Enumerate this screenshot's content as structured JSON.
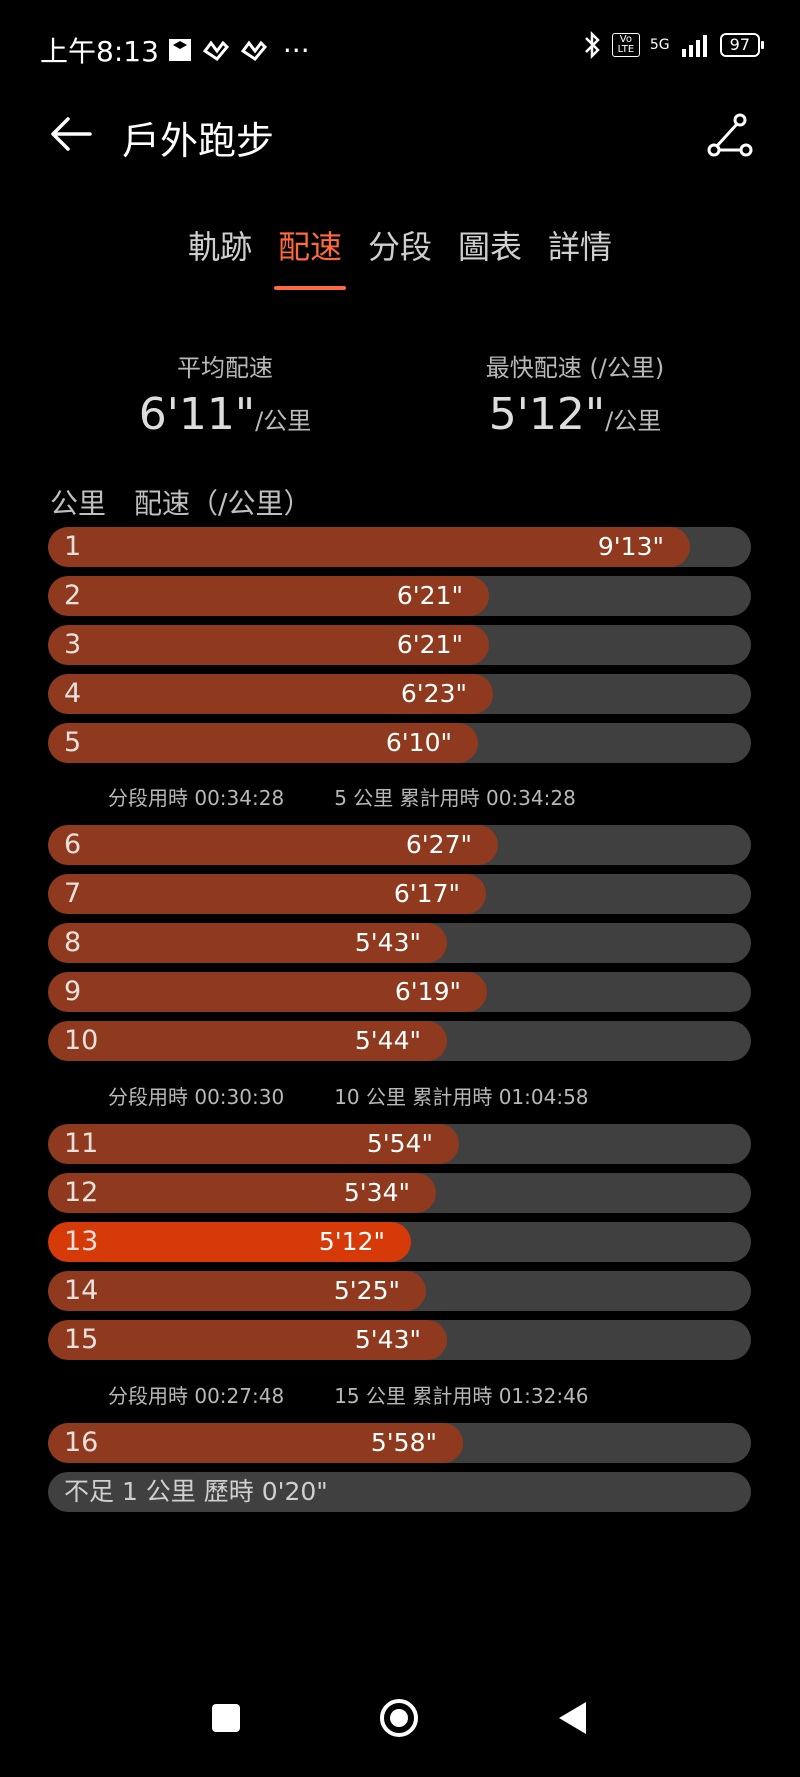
{
  "status_bar": {
    "time": "上午8:13",
    "more": "···",
    "network": "5G",
    "volte": "Vo LTE",
    "battery": "97"
  },
  "header": {
    "title": "戶外跑步"
  },
  "tabs": [
    {
      "label": "軌跡"
    },
    {
      "label": "配速"
    },
    {
      "label": "分段"
    },
    {
      "label": "圖表"
    },
    {
      "label": "詳情"
    }
  ],
  "summary": {
    "avg_label": "平均配速",
    "avg_value": "6'11\"",
    "avg_unit": "/公里",
    "fast_label": "最快配速 (/公里)",
    "fast_value": "5'12\"",
    "fast_unit": "/公里"
  },
  "list_header": {
    "km": "公里",
    "pace": "配速（/公里）"
  },
  "laps": [
    {
      "km": "1",
      "pace": "9'13\"",
      "fraction": 0.913
    },
    {
      "km": "2",
      "pace": "6'21\"",
      "fraction": 0.628
    },
    {
      "km": "3",
      "pace": "6'21\"",
      "fraction": 0.628
    },
    {
      "km": "4",
      "pace": "6'23\"",
      "fraction": 0.633
    },
    {
      "km": "5",
      "pace": "6'10\"",
      "fraction": 0.612
    },
    {
      "km": "6",
      "pace": "6'27\"",
      "fraction": 0.64
    },
    {
      "km": "7",
      "pace": "6'17\"",
      "fraction": 0.623
    },
    {
      "km": "8",
      "pace": "5'43\"",
      "fraction": 0.567
    },
    {
      "km": "9",
      "pace": "6'19\"",
      "fraction": 0.625
    },
    {
      "km": "10",
      "pace": "5'44\"",
      "fraction": 0.568
    },
    {
      "km": "11",
      "pace": "5'54\"",
      "fraction": 0.585
    },
    {
      "km": "12",
      "pace": "5'34\"",
      "fraction": 0.552
    },
    {
      "km": "13",
      "pace": "5'12\"",
      "fraction": 0.516,
      "fastest": true
    },
    {
      "km": "14",
      "pace": "5'25\"",
      "fraction": 0.537
    },
    {
      "km": "15",
      "pace": "5'43\"",
      "fraction": 0.567
    },
    {
      "km": "16",
      "pace": "5'58\"",
      "fraction": 0.59
    }
  ],
  "splits": [
    {
      "segment": "分段用時 00:34:28",
      "cumulative": "5 公里 累計用時 00:34:28"
    },
    {
      "segment": "分段用時 00:30:30",
      "cumulative": "10 公里 累計用時 01:04:58"
    },
    {
      "segment": "分段用時 00:27:48",
      "cumulative": "15 公里 累計用時 01:32:46"
    }
  ],
  "remainder": "不足 1 公里 歷時 0'20\""
}
